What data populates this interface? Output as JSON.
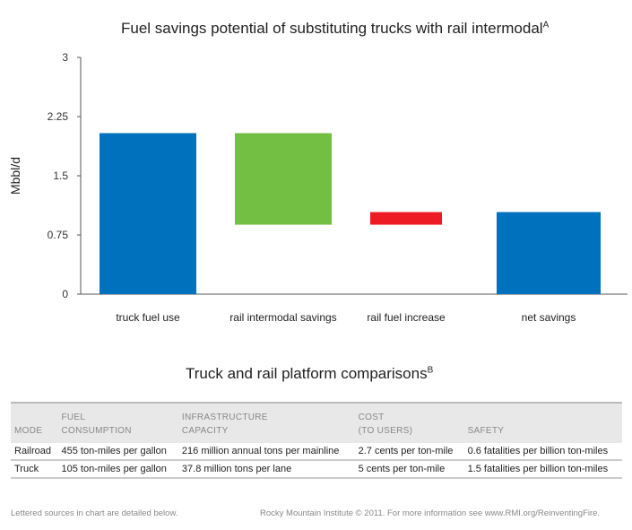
{
  "chart_data": {
    "type": "bar",
    "subtype": "waterfall",
    "title": "Fuel savings potential of substituting trucks with rail intermodal",
    "title_superscript": "A",
    "ylabel": "Mbbl/d",
    "ylim": [
      0,
      3
    ],
    "yticks": [
      "0",
      "0.75",
      "1.5",
      "2.25",
      "3"
    ],
    "categories": [
      "truck fuel use",
      "rail intermodal savings",
      "rail fuel increase",
      "net savings"
    ],
    "bars": [
      {
        "category": "truck fuel use",
        "start": 0,
        "end": 2.04,
        "color": "#0071bc"
      },
      {
        "category": "rail intermodal savings",
        "start": 0.88,
        "end": 2.04,
        "color": "#72bf44"
      },
      {
        "category": "rail fuel increase",
        "start": 0.88,
        "end": 1.04,
        "color": "#ed1c24"
      },
      {
        "category": "net savings",
        "start": 0,
        "end": 1.04,
        "color": "#0071bc"
      }
    ],
    "grid": false
  },
  "table": {
    "title": "Truck and rail platform comparisons",
    "title_superscript": "B",
    "headers": [
      [
        "MODE"
      ],
      [
        "FUEL",
        "CONSUMPTION"
      ],
      [
        "INFRASTRUCTURE",
        "CAPACITY"
      ],
      [
        "COST",
        "(TO USERS)"
      ],
      [
        "SAFETY"
      ]
    ],
    "rows": [
      [
        "Railroad",
        "455 ton-miles per gallon",
        "216 million annual tons per mainline",
        "2.7 cents per ton-mile",
        "0.6 fatalities per billion ton-miles"
      ],
      [
        "Truck",
        "105 ton-miles per gallon",
        "37.8 million tons per lane",
        "5 cents per ton-mile",
        "1.5 fatalities per billion ton-miles"
      ]
    ]
  },
  "footer": {
    "left": "Lettered sources in chart are detailed below.",
    "right": "Rocky Mountain Institute © 2011. For more information see www.RMI.org/ReinventingFire."
  }
}
